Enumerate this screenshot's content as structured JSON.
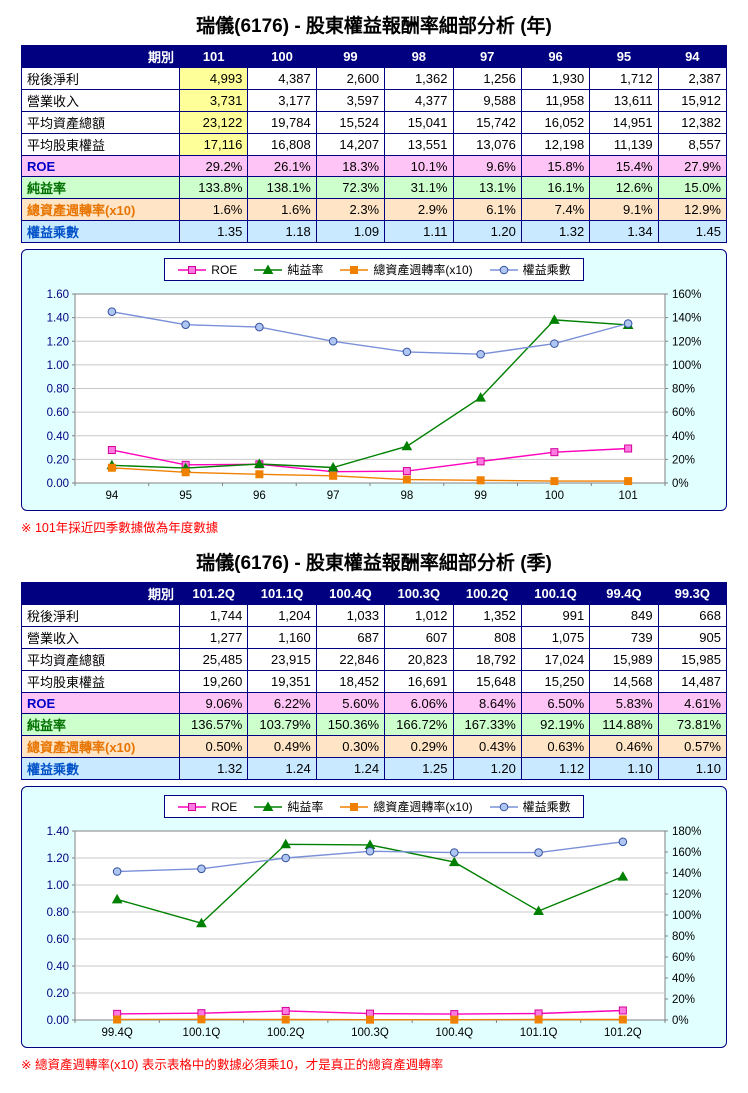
{
  "annual": {
    "title": "瑞儀(6176) -  股東權益報酬率細部分析 (年)",
    "note": "※ 101年採近四季數據做為年度數據",
    "table": {
      "header_label": "期別",
      "periods": [
        "101",
        "100",
        "99",
        "98",
        "97",
        "96",
        "95",
        "94"
      ],
      "rows": [
        {
          "label": "稅後淨利",
          "type": "data",
          "highlight_first": true,
          "values": [
            "4,993",
            "4,387",
            "2,600",
            "1,362",
            "1,256",
            "1,930",
            "1,712",
            "2,387"
          ]
        },
        {
          "label": "營業收入",
          "type": "data",
          "highlight_first": true,
          "values": [
            "3,731",
            "3,177",
            "3,597",
            "4,377",
            "9,588",
            "11,958",
            "13,611",
            "15,912"
          ]
        },
        {
          "label": "平均資產總額",
          "type": "data",
          "highlight_first": true,
          "values": [
            "23,122",
            "19,784",
            "15,524",
            "15,041",
            "15,742",
            "16,052",
            "14,951",
            "12,382"
          ]
        },
        {
          "label": "平均股東權益",
          "type": "data",
          "highlight_first": true,
          "values": [
            "17,116",
            "16,808",
            "14,207",
            "13,551",
            "13,076",
            "12,198",
            "11,139",
            "8,557"
          ]
        },
        {
          "label": "ROE",
          "type": "roe",
          "values": [
            "29.2%",
            "26.1%",
            "18.3%",
            "10.1%",
            "9.6%",
            "15.8%",
            "15.4%",
            "27.9%"
          ]
        },
        {
          "label": "純益率",
          "type": "margin",
          "values": [
            "133.8%",
            "138.1%",
            "72.3%",
            "31.1%",
            "13.1%",
            "16.1%",
            "12.6%",
            "15.0%"
          ]
        },
        {
          "label": "總資產週轉率(x10)",
          "type": "turnover",
          "values": [
            "1.6%",
            "1.6%",
            "2.3%",
            "2.9%",
            "6.1%",
            "7.4%",
            "9.1%",
            "12.9%"
          ]
        },
        {
          "label": "權益乘數",
          "type": "mult",
          "values": [
            "1.35",
            "1.18",
            "1.09",
            "1.11",
            "1.20",
            "1.32",
            "1.34",
            "1.45"
          ]
        }
      ]
    }
  },
  "quarterly": {
    "title": "瑞儀(6176) -  股東權益報酬率細部分析 (季)",
    "note": "※ 總資產週轉率(x10) 表示表格中的數據必須乘10，才是真正的總資產週轉率",
    "table": {
      "header_label": "期別",
      "periods": [
        "101.2Q",
        "101.1Q",
        "100.4Q",
        "100.3Q",
        "100.2Q",
        "100.1Q",
        "99.4Q",
        "99.3Q"
      ],
      "rows": [
        {
          "label": "稅後淨利",
          "type": "data",
          "values": [
            "1,744",
            "1,204",
            "1,033",
            "1,012",
            "1,352",
            "991",
            "849",
            "668"
          ]
        },
        {
          "label": "營業收入",
          "type": "data",
          "values": [
            "1,277",
            "1,160",
            "687",
            "607",
            "808",
            "1,075",
            "739",
            "905"
          ]
        },
        {
          "label": "平均資產總額",
          "type": "data",
          "values": [
            "25,485",
            "23,915",
            "22,846",
            "20,823",
            "18,792",
            "17,024",
            "15,989",
            "15,985"
          ]
        },
        {
          "label": "平均股東權益",
          "type": "data",
          "values": [
            "19,260",
            "19,351",
            "18,452",
            "16,691",
            "15,648",
            "15,250",
            "14,568",
            "14,487"
          ]
        },
        {
          "label": "ROE",
          "type": "roe",
          "values": [
            "9.06%",
            "6.22%",
            "5.60%",
            "6.06%",
            "8.64%",
            "6.50%",
            "5.83%",
            "4.61%"
          ]
        },
        {
          "label": "純益率",
          "type": "margin",
          "values": [
            "136.57%",
            "103.79%",
            "150.36%",
            "166.72%",
            "167.33%",
            "92.19%",
            "114.88%",
            "73.81%"
          ]
        },
        {
          "label": "總資產週轉率(x10)",
          "type": "turnover",
          "values": [
            "0.50%",
            "0.49%",
            "0.30%",
            "0.29%",
            "0.43%",
            "0.63%",
            "0.46%",
            "0.57%"
          ]
        },
        {
          "label": "權益乘數",
          "type": "mult",
          "values": [
            "1.32",
            "1.24",
            "1.24",
            "1.25",
            "1.20",
            "1.12",
            "1.10",
            "1.10"
          ]
        }
      ]
    }
  },
  "chart_data": [
    {
      "type": "line",
      "period": "annual",
      "categories": [
        "94",
        "95",
        "96",
        "97",
        "98",
        "99",
        "100",
        "101"
      ],
      "left_axis": {
        "min": 0,
        "max": 1.6,
        "step": 0.2,
        "decimals": 2
      },
      "right_axis": {
        "min": 0,
        "max": 160,
        "step": 20,
        "suffix": "%"
      },
      "grid": true,
      "legend_position": "top",
      "series": [
        {
          "id": "roe",
          "name": "ROE",
          "axis": "right",
          "marker": "square",
          "color": "#FF00BB",
          "marker_fill": "#FF7AE0",
          "marker_stroke": "#D4009B",
          "values": [
            27.9,
            15.4,
            15.8,
            9.6,
            10.1,
            18.3,
            26.1,
            29.2
          ]
        },
        {
          "id": "net-margin",
          "name": "純益率",
          "axis": "right",
          "marker": "triangle",
          "color": "#008000",
          "values": [
            15.0,
            12.6,
            16.1,
            13.1,
            31.1,
            72.3,
            138.1,
            133.8
          ]
        },
        {
          "id": "asset-turnover",
          "name": "總資產週轉率(x10)",
          "axis": "right",
          "marker": "square",
          "color": "#F08000",
          "values": [
            12.9,
            9.1,
            7.4,
            6.1,
            2.9,
            2.3,
            1.6,
            1.6
          ]
        },
        {
          "id": "equity-multiplier",
          "name": "權益乘數",
          "axis": "left",
          "marker": "circle",
          "color": "#7A90D8",
          "marker_fill": "#AFC6F2",
          "marker_stroke": "#33509E",
          "values": [
            1.45,
            1.34,
            1.32,
            1.2,
            1.11,
            1.09,
            1.18,
            1.35
          ]
        }
      ]
    },
    {
      "type": "line",
      "period": "quarterly",
      "categories": [
        "99.4Q",
        "100.1Q",
        "100.2Q",
        "100.3Q",
        "100.4Q",
        "101.1Q",
        "101.2Q"
      ],
      "left_axis": {
        "min": 0,
        "max": 1.4,
        "step": 0.2,
        "decimals": 2
      },
      "right_axis": {
        "min": 0,
        "max": 180,
        "step": 20,
        "suffix": "%"
      },
      "grid": true,
      "legend_position": "top",
      "series": [
        {
          "id": "roe",
          "name": "ROE",
          "axis": "right",
          "marker": "square",
          "color": "#FF00BB",
          "marker_fill": "#FF7AE0",
          "marker_stroke": "#D4009B",
          "values": [
            5.83,
            6.5,
            8.64,
            6.06,
            5.6,
            6.22,
            9.06
          ]
        },
        {
          "id": "net-margin",
          "name": "純益率",
          "axis": "right",
          "marker": "triangle",
          "color": "#008000",
          "values": [
            114.88,
            92.19,
            167.33,
            166.72,
            150.36,
            103.79,
            136.57
          ]
        },
        {
          "id": "asset-turnover",
          "name": "總資產週轉率(x10)",
          "axis": "right",
          "marker": "square",
          "color": "#F08000",
          "values": [
            0.46,
            0.63,
            0.43,
            0.29,
            0.3,
            0.49,
            0.5
          ]
        },
        {
          "id": "equity-multiplier",
          "name": "權益乘數",
          "axis": "left",
          "marker": "circle",
          "color": "#7A90D8",
          "marker_fill": "#AFC6F2",
          "marker_stroke": "#33509E",
          "values": [
            1.1,
            1.12,
            1.2,
            1.25,
            1.24,
            1.24,
            1.32
          ]
        }
      ]
    }
  ]
}
